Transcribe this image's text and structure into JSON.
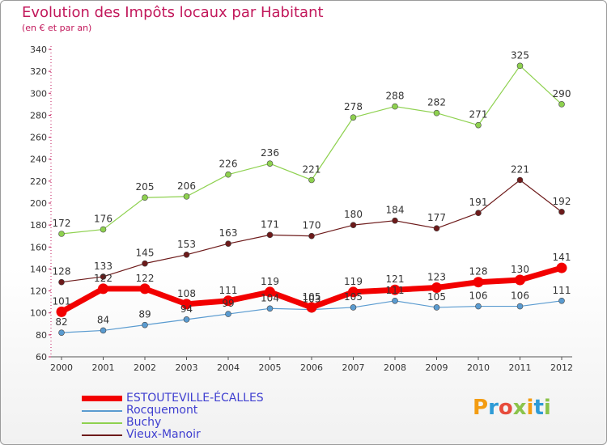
{
  "title": "Evolution des Impôts locaux par Habitant",
  "subtitle": "(en € et par an)",
  "brand": {
    "text": "Proxiti",
    "letter_colors": [
      "#f39c12",
      "#2e9bd6",
      "#e74c3c",
      "#8bc34a",
      "#f39c12",
      "#2e9bd6",
      "#8bc34a"
    ]
  },
  "chart_data": {
    "type": "line",
    "x": [
      2000,
      2001,
      2002,
      2003,
      2004,
      2005,
      2006,
      2007,
      2008,
      2009,
      2010,
      2011,
      2012
    ],
    "ylim": [
      60,
      340
    ],
    "yticks": [
      60,
      80,
      100,
      120,
      140,
      160,
      180,
      200,
      220,
      240,
      260,
      280,
      300,
      320,
      340
    ],
    "grid": false,
    "legend_position": "bottom-left",
    "series": [
      {
        "name": "Vieux-Manoir",
        "color": "#6d1a1a",
        "width": 1.2,
        "marker": 3.5,
        "values": [
          128,
          133,
          145,
          153,
          163,
          171,
          170,
          180,
          184,
          177,
          191,
          221,
          192
        ]
      },
      {
        "name": "Buchy",
        "color": "#8ed14f",
        "width": 1.2,
        "marker": 3.5,
        "values": [
          172,
          176,
          205,
          206,
          226,
          236,
          221,
          278,
          288,
          282,
          271,
          325,
          290
        ]
      },
      {
        "name": "Rocquemont",
        "color": "#5a9bd0",
        "width": 1.2,
        "marker": 3.5,
        "values": [
          82,
          84,
          89,
          94,
          99,
          104,
          103,
          105,
          111,
          105,
          106,
          106,
          111
        ]
      },
      {
        "name": "ESTOUTEVILLE-ÉCALLES",
        "color": "#f20000",
        "width": 7,
        "marker": 6.5,
        "values": [
          101,
          122,
          122,
          108,
          111,
          119,
          105,
          119,
          121,
          123,
          128,
          130,
          141
        ]
      }
    ],
    "legend_order": [
      "ESTOUTEVILLE-ÉCALLES",
      "Rocquemont",
      "Buchy",
      "Vieux-Manoir"
    ]
  }
}
